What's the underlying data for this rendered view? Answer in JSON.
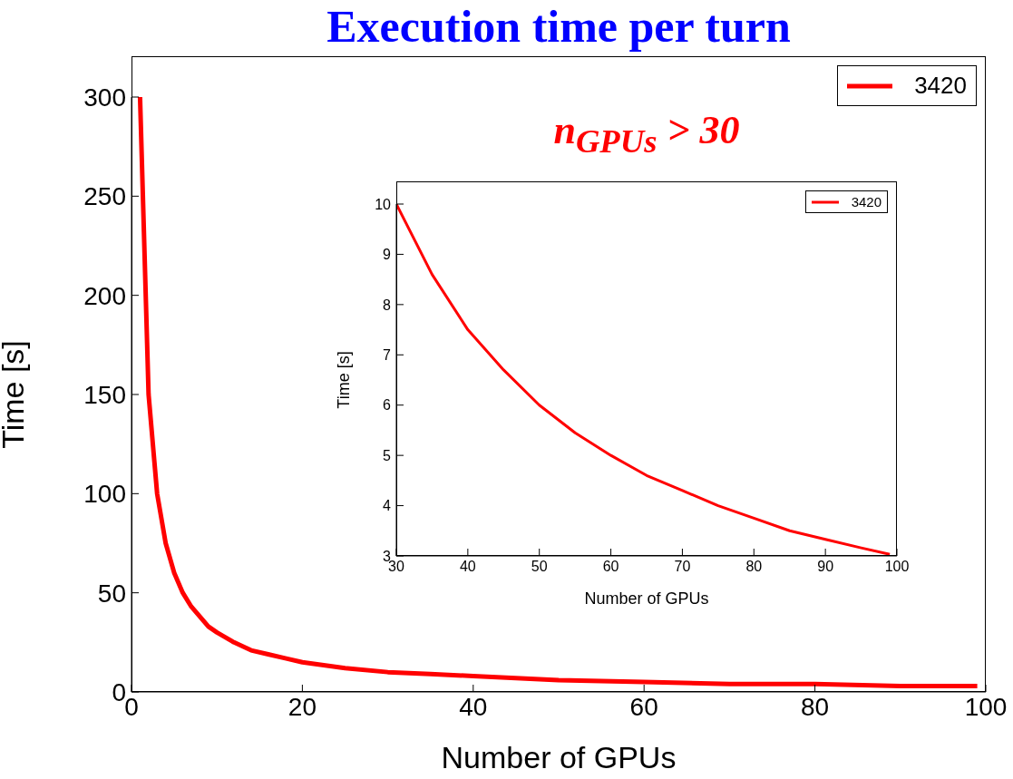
{
  "chart_data": [
    {
      "type": "line",
      "title": "Execution time per turn",
      "xlabel": "Number of GPUs",
      "ylabel": "Time [s]",
      "x": [
        1,
        2,
        3,
        4,
        5,
        6,
        7,
        8,
        9,
        10,
        12,
        14,
        16,
        18,
        20,
        25,
        30,
        35,
        40,
        50,
        60,
        70,
        80,
        90,
        99
      ],
      "series": [
        {
          "name": "3420",
          "color": "#ff0000",
          "values": [
            300,
            150,
            100,
            75,
            60,
            50,
            43,
            38,
            33,
            30,
            25,
            21,
            19,
            17,
            15,
            12,
            10,
            9,
            8,
            6,
            5,
            4,
            4,
            3,
            3
          ]
        }
      ],
      "xlim": [
        0,
        100
      ],
      "xticks": [
        0,
        20,
        40,
        60,
        80,
        100
      ],
      "ylim": [
        0,
        300
      ],
      "yticks": [
        0,
        50,
        100,
        150,
        200,
        250,
        300
      ],
      "grid": false,
      "legend": "top right",
      "marker": "none",
      "line_style": "solid"
    },
    {
      "type": "line",
      "title": "n$_{GPUs}$ > 30",
      "xlabel": "Number of GPUs",
      "ylabel": "Time [s]",
      "x": [
        30,
        35,
        40,
        45,
        50,
        55,
        60,
        65,
        70,
        75,
        80,
        85,
        90,
        95,
        99
      ],
      "series": [
        {
          "name": "3420",
          "color": "#ff0000",
          "values": [
            10,
            8.6,
            7.5,
            6.7,
            6,
            5.45,
            5,
            4.6,
            4.3,
            4,
            3.75,
            3.5,
            3.33,
            3.16,
            3.03
          ]
        }
      ],
      "xlim": [
        30,
        100
      ],
      "xticks": [
        30,
        40,
        50,
        60,
        70,
        80,
        90,
        100
      ],
      "ylim": [
        3,
        10
      ],
      "yticks": [
        3,
        4,
        5,
        6,
        7,
        8,
        9,
        10
      ],
      "grid": false,
      "legend": "top right",
      "marker": "none",
      "line_style": "solid"
    }
  ]
}
